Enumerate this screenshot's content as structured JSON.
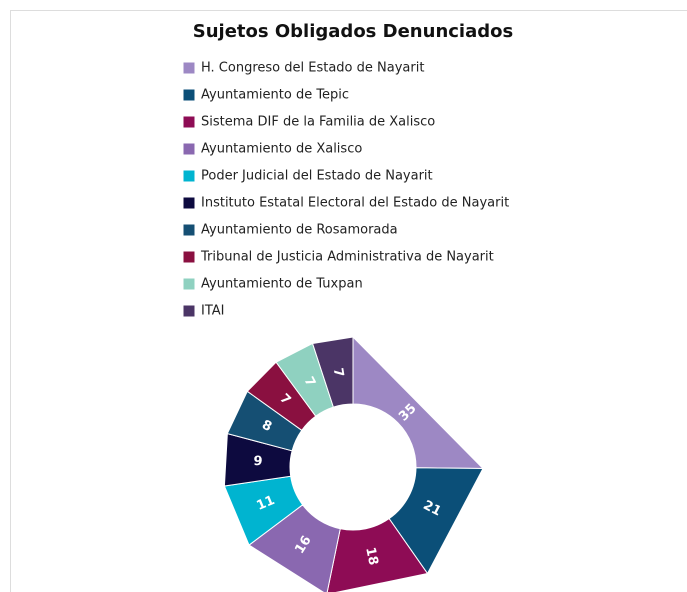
{
  "chart_data": {
    "type": "donut",
    "title": "Sujetos Obligados  Denunciados",
    "categories": [
      "H. Congreso del Estado de Nayarit",
      "Ayuntamiento de Tepic",
      "Sistema DIF de la Familia de Xalisco",
      "Ayuntamiento de Xalisco",
      "Poder Judicial del Estado de Nayarit",
      "Instituto Estatal Electoral del Estado de Nayarit",
      "Ayuntamiento de Rosamorada",
      "Tribunal de Justicia Administrativa de Nayarit",
      "Ayuntamiento de Tuxpan",
      "ITAI"
    ],
    "values": [
      35,
      21,
      18,
      16,
      11,
      9,
      8,
      7,
      7,
      7
    ],
    "colors": [
      "#9d88c4",
      "#0b4f78",
      "#8e0c55",
      "#8a68b0",
      "#00b4d0",
      "#0d0a3f",
      "#154f73",
      "#8a1040",
      "#8fd1c0",
      "#4b3566"
    ],
    "legend": "top"
  }
}
